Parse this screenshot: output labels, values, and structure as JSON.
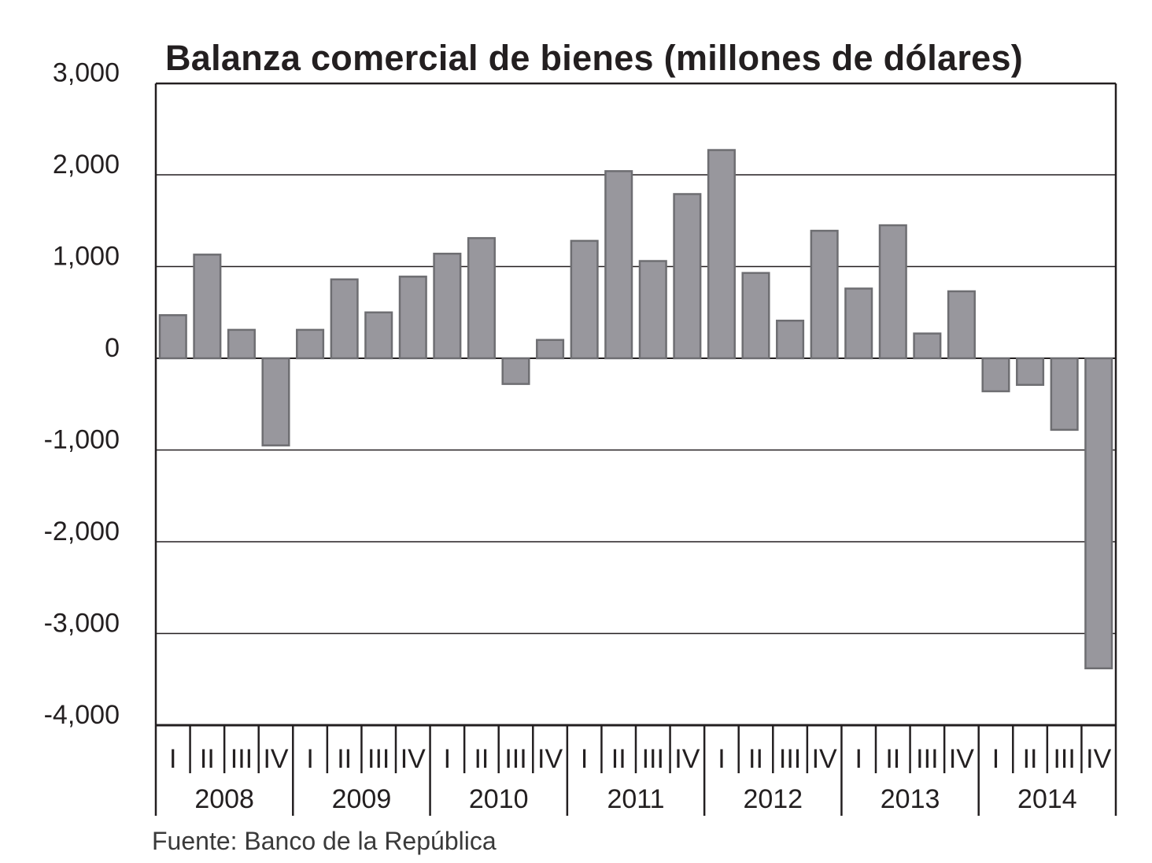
{
  "chart_data": {
    "type": "bar",
    "title": "Balanza comercial de bienes (millones de dólares)",
    "source": "Fuente: Banco de la República",
    "ylim": [
      -4000,
      3000
    ],
    "yticks": [
      "3,000",
      "2,000",
      "1,000",
      "0",
      "-1,000",
      "-2,000",
      "-3,000",
      "-4,000"
    ],
    "ytick_values": [
      3000,
      2000,
      1000,
      0,
      -1000,
      -2000,
      -3000,
      -4000
    ],
    "grid": true,
    "quarters": [
      "I",
      "II",
      "III",
      "IV"
    ],
    "years": [
      "2008",
      "2009",
      "2010",
      "2011",
      "2012",
      "2013",
      "2014"
    ],
    "values": [
      470,
      1130,
      310,
      -950,
      310,
      860,
      500,
      890,
      1140,
      1310,
      -280,
      200,
      1280,
      2040,
      1060,
      1790,
      2270,
      930,
      410,
      1390,
      760,
      1450,
      270,
      730,
      -360,
      -290,
      -780,
      -3380
    ],
    "colors": {
      "bar_fill": "#98979d",
      "bar_stroke": "#6e6e72",
      "axis": "#231f20"
    }
  }
}
